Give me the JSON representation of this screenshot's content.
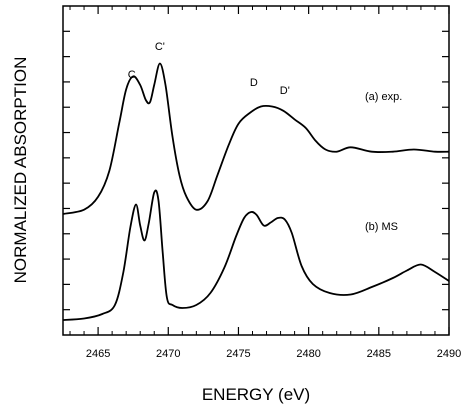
{
  "chart_data": {
    "type": "line",
    "xlabel": "ENERGY (eV)",
    "ylabel": "NORMALIZED ABSORPTION",
    "xlim": [
      2462.5,
      2490
    ],
    "x_ticks": [
      2465,
      2470,
      2475,
      2480,
      2485,
      2490
    ],
    "y_tick_count": 12,
    "y_ticks_labeled": false,
    "grid": false,
    "legend": "none",
    "annotations": [
      {
        "text": "C",
        "x": 2467.4
      },
      {
        "text": "C'",
        "x": 2469.4
      },
      {
        "text": "D",
        "x": 2476.1
      },
      {
        "text": "D'",
        "x": 2478.3
      }
    ],
    "series": [
      {
        "name": "(a) exp.",
        "x": [
          2462.5,
          2464.0,
          2465.0,
          2465.8,
          2466.5,
          2467.0,
          2467.5,
          2468.0,
          2468.4,
          2468.7,
          2469.0,
          2469.4,
          2469.8,
          2470.3,
          2470.8,
          2471.3,
          2472.0,
          2472.8,
          2473.5,
          2474.3,
          2475.0,
          2475.8,
          2476.6,
          2477.4,
          2478.2,
          2479.0,
          2479.8,
          2480.5,
          2481.2,
          2482.0,
          2483.0,
          2484.5,
          2486.0,
          2487.5,
          2489.0,
          2490.0
        ],
        "y": [
          0.0,
          0.02,
          0.08,
          0.2,
          0.42,
          0.58,
          0.64,
          0.6,
          0.53,
          0.52,
          0.6,
          0.7,
          0.6,
          0.36,
          0.18,
          0.08,
          0.02,
          0.06,
          0.18,
          0.32,
          0.42,
          0.47,
          0.5,
          0.5,
          0.48,
          0.44,
          0.4,
          0.34,
          0.3,
          0.29,
          0.31,
          0.29,
          0.29,
          0.3,
          0.29,
          0.29
        ]
      },
      {
        "name": "(b) MS",
        "x": [
          2462.5,
          2464.0,
          2465.3,
          2466.2,
          2466.8,
          2467.3,
          2467.7,
          2468.0,
          2468.3,
          2468.6,
          2469.0,
          2469.3,
          2469.6,
          2469.9,
          2470.3,
          2471.0,
          2472.0,
          2473.0,
          2474.0,
          2474.8,
          2475.4,
          2475.9,
          2476.3,
          2476.8,
          2477.3,
          2477.8,
          2478.3,
          2478.8,
          2479.5,
          2480.3,
          2481.5,
          2483.0,
          2484.5,
          2486.0,
          2487.0,
          2488.0,
          2489.0,
          2490.0
        ],
        "y": [
          0.0,
          0.01,
          0.04,
          0.1,
          0.32,
          0.62,
          0.77,
          0.63,
          0.53,
          0.64,
          0.85,
          0.8,
          0.45,
          0.15,
          0.1,
          0.08,
          0.1,
          0.18,
          0.35,
          0.55,
          0.68,
          0.72,
          0.7,
          0.63,
          0.65,
          0.68,
          0.67,
          0.58,
          0.36,
          0.24,
          0.18,
          0.17,
          0.22,
          0.28,
          0.33,
          0.37,
          0.32,
          0.26
        ]
      }
    ]
  }
}
